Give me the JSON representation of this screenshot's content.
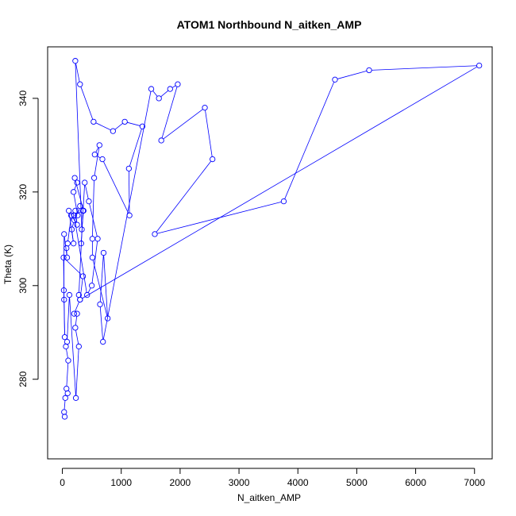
{
  "chart_data": {
    "type": "line",
    "title": "ATOM1 Northbound N_aitken_AMP",
    "xlabel": "N_aitken_AMP",
    "ylabel": "Theta (K)",
    "xlim": [
      -250,
      7300
    ],
    "ylim": [
      263,
      351
    ],
    "x_ticks": [
      0,
      1000,
      2000,
      3000,
      4000,
      5000,
      6000,
      7000
    ],
    "y_ticks": [
      280,
      300,
      320,
      340
    ],
    "grid": false,
    "legend": "none",
    "series_color": "#0000ff",
    "marker": "open-circle",
    "series": [
      {
        "points": [
          [
            40,
            272
          ],
          [
            30,
            273
          ],
          [
            50,
            276
          ],
          [
            90,
            277
          ],
          [
            70,
            278
          ],
          [
            100,
            284
          ],
          [
            60,
            287
          ],
          [
            80,
            288
          ],
          [
            120,
            298
          ],
          [
            230,
            276
          ],
          [
            280,
            287
          ],
          [
            220,
            291
          ],
          [
            250,
            294
          ],
          [
            200,
            294
          ],
          [
            300,
            297
          ],
          [
            350,
            302
          ],
          [
            20,
            306
          ],
          [
            30,
            297
          ],
          [
            40,
            289
          ],
          [
            25,
            299
          ],
          [
            30,
            311
          ],
          [
            80,
            306
          ],
          [
            70,
            308
          ],
          [
            90,
            309
          ],
          [
            150,
            315
          ],
          [
            200,
            314
          ],
          [
            160,
            312
          ],
          [
            190,
            309
          ],
          [
            110,
            316
          ],
          [
            250,
            313
          ],
          [
            220,
            316
          ],
          [
            300,
            317
          ],
          [
            260,
            315
          ],
          [
            190,
            320
          ],
          [
            250,
            322
          ],
          [
            210,
            323
          ],
          [
            360,
            316
          ],
          [
            330,
            312
          ],
          [
            220,
            348
          ],
          [
            300,
            343
          ],
          [
            530,
            335
          ],
          [
            860,
            333
          ],
          [
            1060,
            335
          ],
          [
            1360,
            334
          ],
          [
            1130,
            325
          ],
          [
            1140,
            315
          ],
          [
            680,
            327
          ],
          [
            550,
            328
          ],
          [
            630,
            330
          ],
          [
            540,
            323
          ],
          [
            510,
            310
          ],
          [
            510,
            306
          ],
          [
            770,
            293
          ],
          [
            700,
            307
          ],
          [
            640,
            296
          ],
          [
            690,
            288
          ],
          [
            1510,
            342
          ],
          [
            1640,
            340
          ],
          [
            1830,
            342
          ],
          [
            1960,
            343
          ],
          [
            1680,
            331
          ],
          [
            2420,
            338
          ],
          [
            2550,
            327
          ],
          [
            1570,
            311
          ],
          [
            3760,
            318
          ],
          [
            4630,
            344
          ],
          [
            5210,
            346
          ],
          [
            7080,
            347
          ],
          [
            300,
            297
          ],
          [
            280,
            298
          ],
          [
            350,
            316
          ],
          [
            200,
            315
          ],
          [
            420,
            298
          ],
          [
            500,
            300
          ],
          [
            600,
            310
          ],
          [
            450,
            318
          ],
          [
            380,
            322
          ],
          [
            320,
            309
          ]
        ]
      }
    ]
  }
}
